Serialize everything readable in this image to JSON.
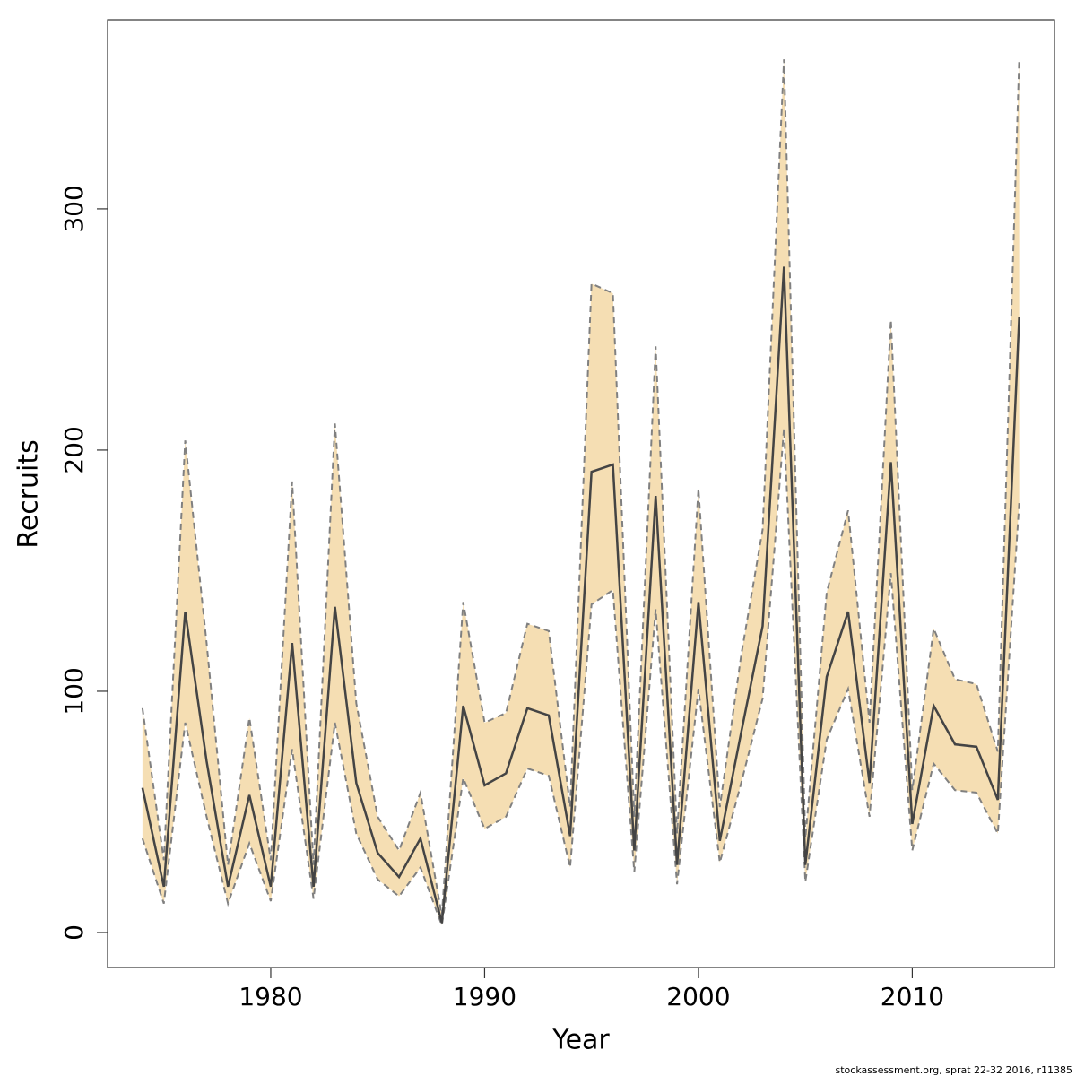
{
  "chart_data": {
    "type": "line",
    "xlabel": "Year",
    "ylabel": "Recruits",
    "footer": "stockassessment.org, sprat  22-32  2016, r11385",
    "x": [
      1974,
      1975,
      1976,
      1977,
      1978,
      1979,
      1980,
      1981,
      1982,
      1983,
      1984,
      1985,
      1986,
      1987,
      1988,
      1989,
      1990,
      1991,
      1992,
      1993,
      1994,
      1995,
      1996,
      1997,
      1998,
      1999,
      2000,
      2001,
      2002,
      2003,
      2004,
      2005,
      2006,
      2007,
      2008,
      2009,
      2010,
      2011,
      2012,
      2013,
      2014,
      2015
    ],
    "values": [
      60,
      19,
      133,
      71,
      19,
      57,
      19,
      120,
      19,
      135,
      62,
      33,
      23,
      39,
      4,
      94,
      61,
      66,
      93,
      90,
      40,
      191,
      194,
      34,
      181,
      28,
      137,
      38,
      83,
      127,
      276,
      28,
      106,
      133,
      62,
      195,
      45,
      94,
      78,
      77,
      55,
      255
    ],
    "lower": [
      39,
      12,
      87,
      48,
      12,
      37,
      13,
      76,
      14,
      87,
      41,
      22,
      15,
      27,
      3,
      64,
      43,
      48,
      68,
      65,
      27,
      136,
      142,
      25,
      134,
      20,
      101,
      29,
      62,
      97,
      209,
      21,
      80,
      101,
      48,
      149,
      34,
      70,
      59,
      58,
      41,
      178
    ],
    "upper": [
      93,
      30,
      204,
      120,
      28,
      89,
      30,
      187,
      28,
      211,
      95,
      48,
      34,
      58,
      7,
      137,
      87,
      91,
      128,
      125,
      52,
      269,
      265,
      48,
      243,
      41,
      184,
      52,
      115,
      167,
      362,
      39,
      141,
      175,
      87,
      254,
      59,
      126,
      105,
      103,
      75,
      362
    ],
    "line_color": "#444444",
    "band_color": "#f5deb3",
    "band_line_color": "#808080",
    "xlim": [
      1972.37,
      2016.65
    ],
    "ylim": [
      -14.5,
      378.4
    ],
    "xticks": [
      1980,
      1990,
      2000,
      2010
    ],
    "yticks": [
      0,
      100,
      200,
      300
    ]
  }
}
